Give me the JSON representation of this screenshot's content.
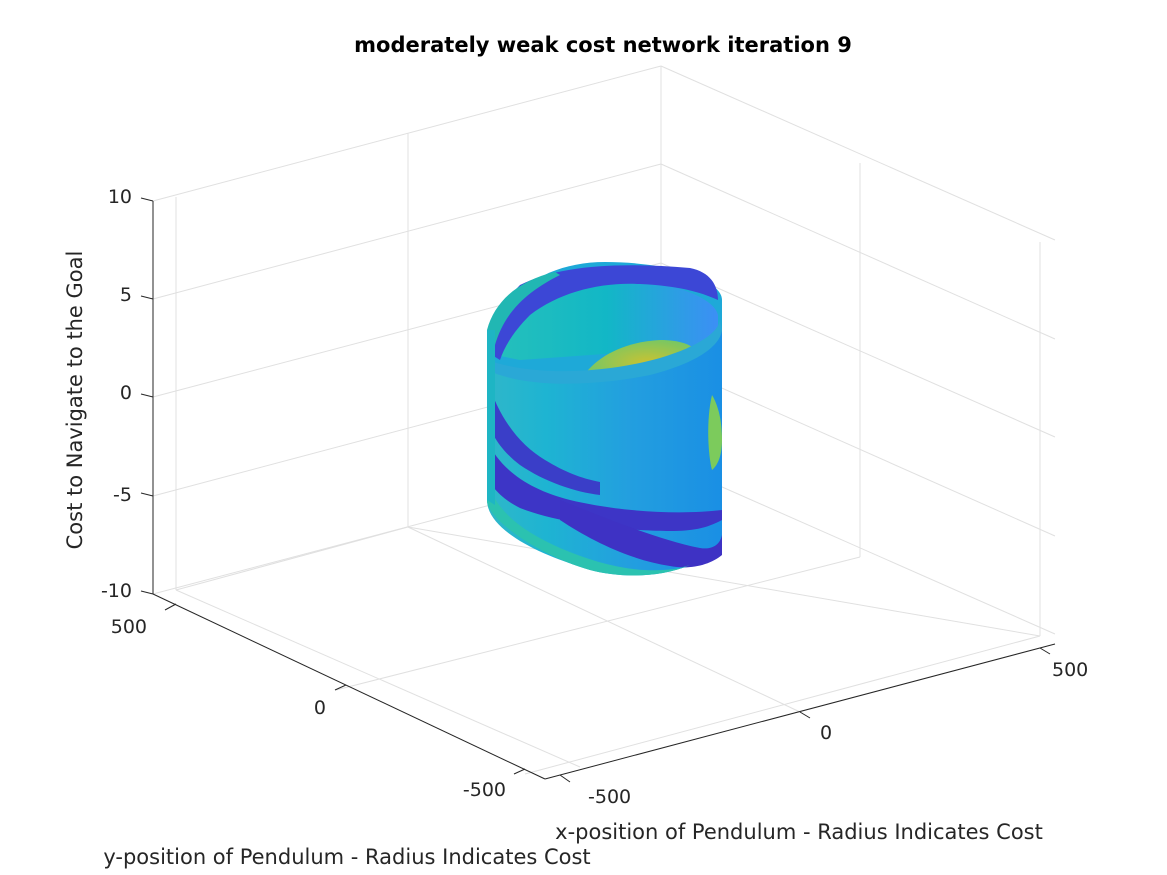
{
  "chart_data": {
    "type": "surface",
    "title": "moderately weak cost network iteration 9",
    "xlabel": "x-position of Pendulum - Radius Indicates Cost",
    "ylabel": "y-position of Pendulum - Radius Indicates Cost",
    "zlabel": "Cost to Navigate to the Goal",
    "xlim": [
      -650,
      650
    ],
    "ylim": [
      -650,
      650
    ],
    "zlim": [
      -10,
      10
    ],
    "x_ticks": [
      -500,
      0,
      500
    ],
    "y_ticks": [
      -500,
      0,
      500
    ],
    "z_ticks": [
      -10,
      -5,
      0,
      5,
      10
    ],
    "x_tick_labels": [
      "-500",
      "0",
      "500"
    ],
    "y_tick_labels": [
      "-500",
      "0",
      "500"
    ],
    "z_tick_labels": [
      "-10",
      "-5",
      "0",
      "5",
      "10"
    ],
    "grid": true,
    "colormap": "parula",
    "surface": {
      "shape": "cylinder",
      "radius_approx": 280,
      "z_range": [
        -7.5,
        6.2
      ],
      "color_range": [
        "#3e26a8",
        "#1fb8b5",
        "#b8c43a"
      ]
    }
  }
}
